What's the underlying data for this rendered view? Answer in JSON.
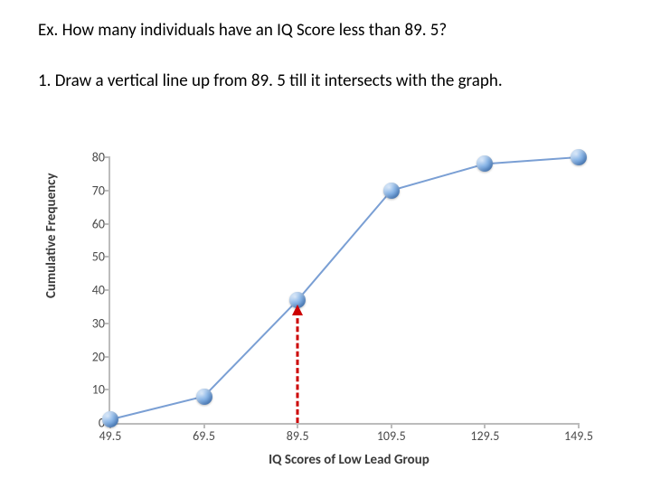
{
  "question_text": "Ex. How many individuals have an IQ Score less than 89. 5?",
  "step1_text": "1. Draw a vertical line up from 89. 5 till it intersects with the graph.",
  "chart": {
    "type": "line",
    "xlabel": "IQ Scores of Low Lead Group",
    "ylabel": "Cumulative Frequency",
    "xlim": [
      49.5,
      149.5
    ],
    "ylim": [
      0,
      80
    ],
    "ytick_step": 10,
    "x_ticks": [
      49.5,
      69.5,
      89.5,
      109.5,
      129.5,
      149.5
    ],
    "points": [
      {
        "x": 49.5,
        "y": 1
      },
      {
        "x": 69.5,
        "y": 8
      },
      {
        "x": 89.5,
        "y": 37
      },
      {
        "x": 109.5,
        "y": 70
      },
      {
        "x": 129.5,
        "y": 78
      },
      {
        "x": 149.5,
        "y": 80
      }
    ],
    "line_color": "#7a9fd4",
    "line_width": 2,
    "marker_color": "#6a9fdc",
    "marker_size": 18,
    "axis_color": "#bcbcbc",
    "tick_label_color": "#4a4a4a",
    "label_fontsize": 15,
    "tick_fontsize": 14,
    "background_color": "#ffffff",
    "indicator": {
      "x": 89.5,
      "color": "#cc0000",
      "dash": "dashed",
      "line_width": 3
    }
  }
}
